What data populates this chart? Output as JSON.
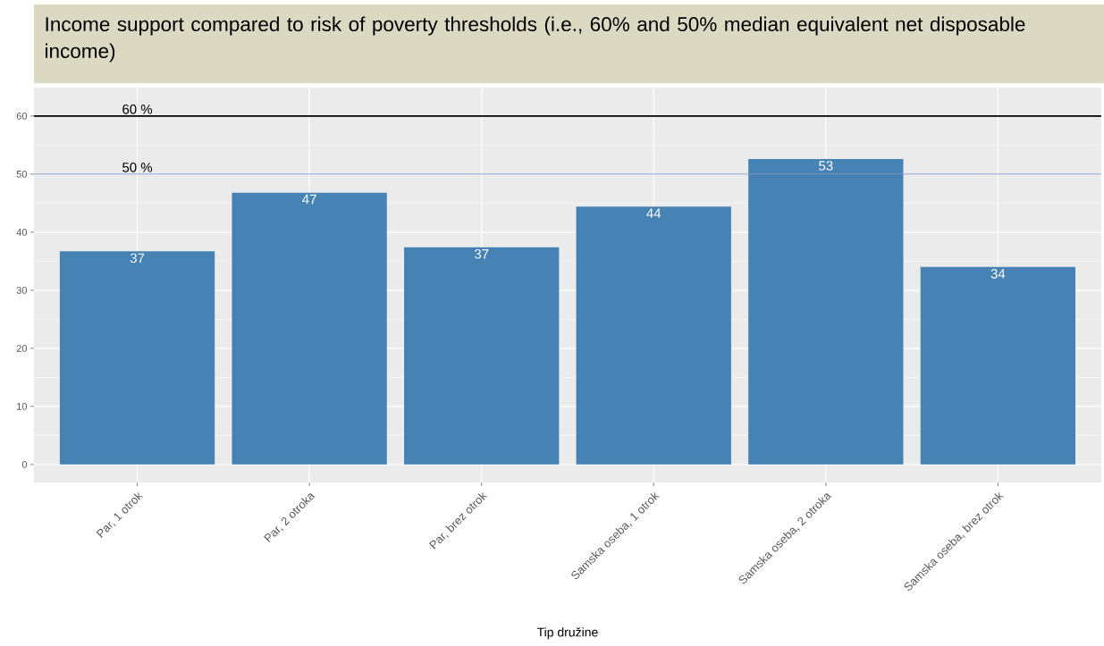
{
  "chart_data": {
    "type": "bar",
    "title": "Income support compared to risk of poverty thresholds (i.e., 60% and 50% median equivalent net disposable income)",
    "xlabel": "Tip družine",
    "categories": [
      "Par, 1 otrok",
      "Par, 2 otroka",
      "Par, brez otrok",
      "Samska oseba, 1 otrok",
      "Samska oseba, 2 otroka",
      "Samska oseba, brez otrok"
    ],
    "values": [
      36.7,
      46.8,
      37.4,
      44.4,
      52.6,
      34.0
    ],
    "value_labels": [
      "37",
      "47",
      "37",
      "44",
      "53",
      "34"
    ],
    "color": "#4682b4",
    "ylim": [
      -3.1,
      64.9
    ],
    "yticks": [
      0,
      10,
      20,
      30,
      40,
      50,
      60
    ],
    "grid": true,
    "ref_lines": [
      {
        "axis": "y",
        "value": 60,
        "label": "60 %",
        "color": "#000000"
      },
      {
        "axis": "y",
        "value": 50,
        "label": "50 %",
        "color": "#7a9cc0"
      }
    ]
  }
}
